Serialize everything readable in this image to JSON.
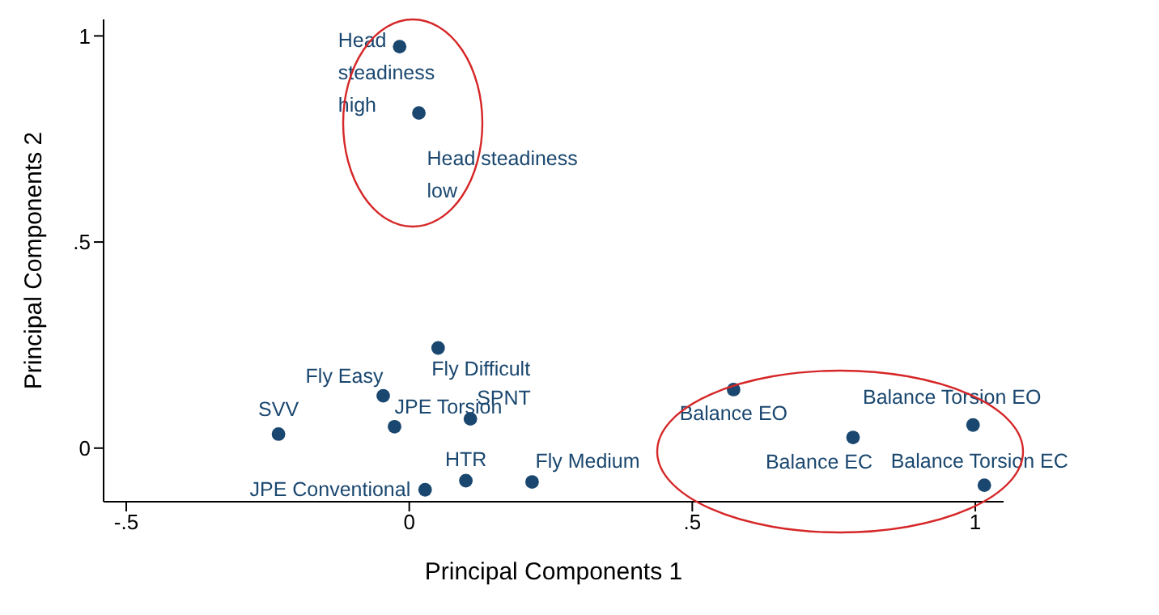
{
  "chart_data": {
    "type": "scatter",
    "xlabel": "Principal Components 1",
    "ylabel": "Principal Components 2",
    "x": [
      -0.017,
      0.017,
      0.051,
      -0.046,
      -0.231,
      -0.026,
      0.108,
      0.1,
      0.217,
      0.028,
      0.573,
      0.784,
      0.996,
      1.016
    ],
    "series": [
      {
        "color": "#1a476f",
        "values": [
          0.974,
          0.813,
          0.243,
          0.127,
          0.034,
          0.052,
          0.071,
          -0.079,
          -0.082,
          -0.101,
          0.142,
          0.026,
          0.056,
          -0.09
        ]
      }
    ],
    "annotations": [
      {
        "text": "Head steadiness high",
        "x": -0.017,
        "y": 0.974
      },
      {
        "text": "Head steadiness low",
        "x": 0.017,
        "y": 0.813
      },
      {
        "text": "Fly Difficult",
        "x": 0.051,
        "y": 0.243
      },
      {
        "text": "Fly Easy",
        "x": -0.046,
        "y": 0.127
      },
      {
        "text": "SVV",
        "x": -0.231,
        "y": 0.034
      },
      {
        "text": "JPE Torsion",
        "x": -0.026,
        "y": 0.052
      },
      {
        "text": "SPNT",
        "x": 0.108,
        "y": 0.071
      },
      {
        "text": "HTR",
        "x": 0.1,
        "y": -0.079
      },
      {
        "text": "Fly Medium",
        "x": 0.217,
        "y": -0.082
      },
      {
        "text": "JPE Conventional",
        "x": 0.028,
        "y": -0.101
      },
      {
        "text": "Balance EO",
        "x": 0.573,
        "y": 0.142
      },
      {
        "text": "Balance EC",
        "x": 0.784,
        "y": 0.026
      },
      {
        "text": "Balance Torsion EO",
        "x": 0.996,
        "y": 0.056
      },
      {
        "text": "Balance Torsion EC",
        "x": 1.016,
        "y": -0.09
      }
    ],
    "xlim": [
      -0.54,
      1.05
    ],
    "ylim": [
      -0.13,
      1.04
    ],
    "xticks": [
      {
        "value": -0.5,
        "label": "-.5"
      },
      0,
      {
        "value": 0.5,
        "label": ".5"
      },
      1
    ],
    "yticks": [
      0,
      {
        "value": 0.5,
        "label": ".5"
      },
      1
    ],
    "grid": false,
    "legend": false,
    "marker": "circle"
  }
}
